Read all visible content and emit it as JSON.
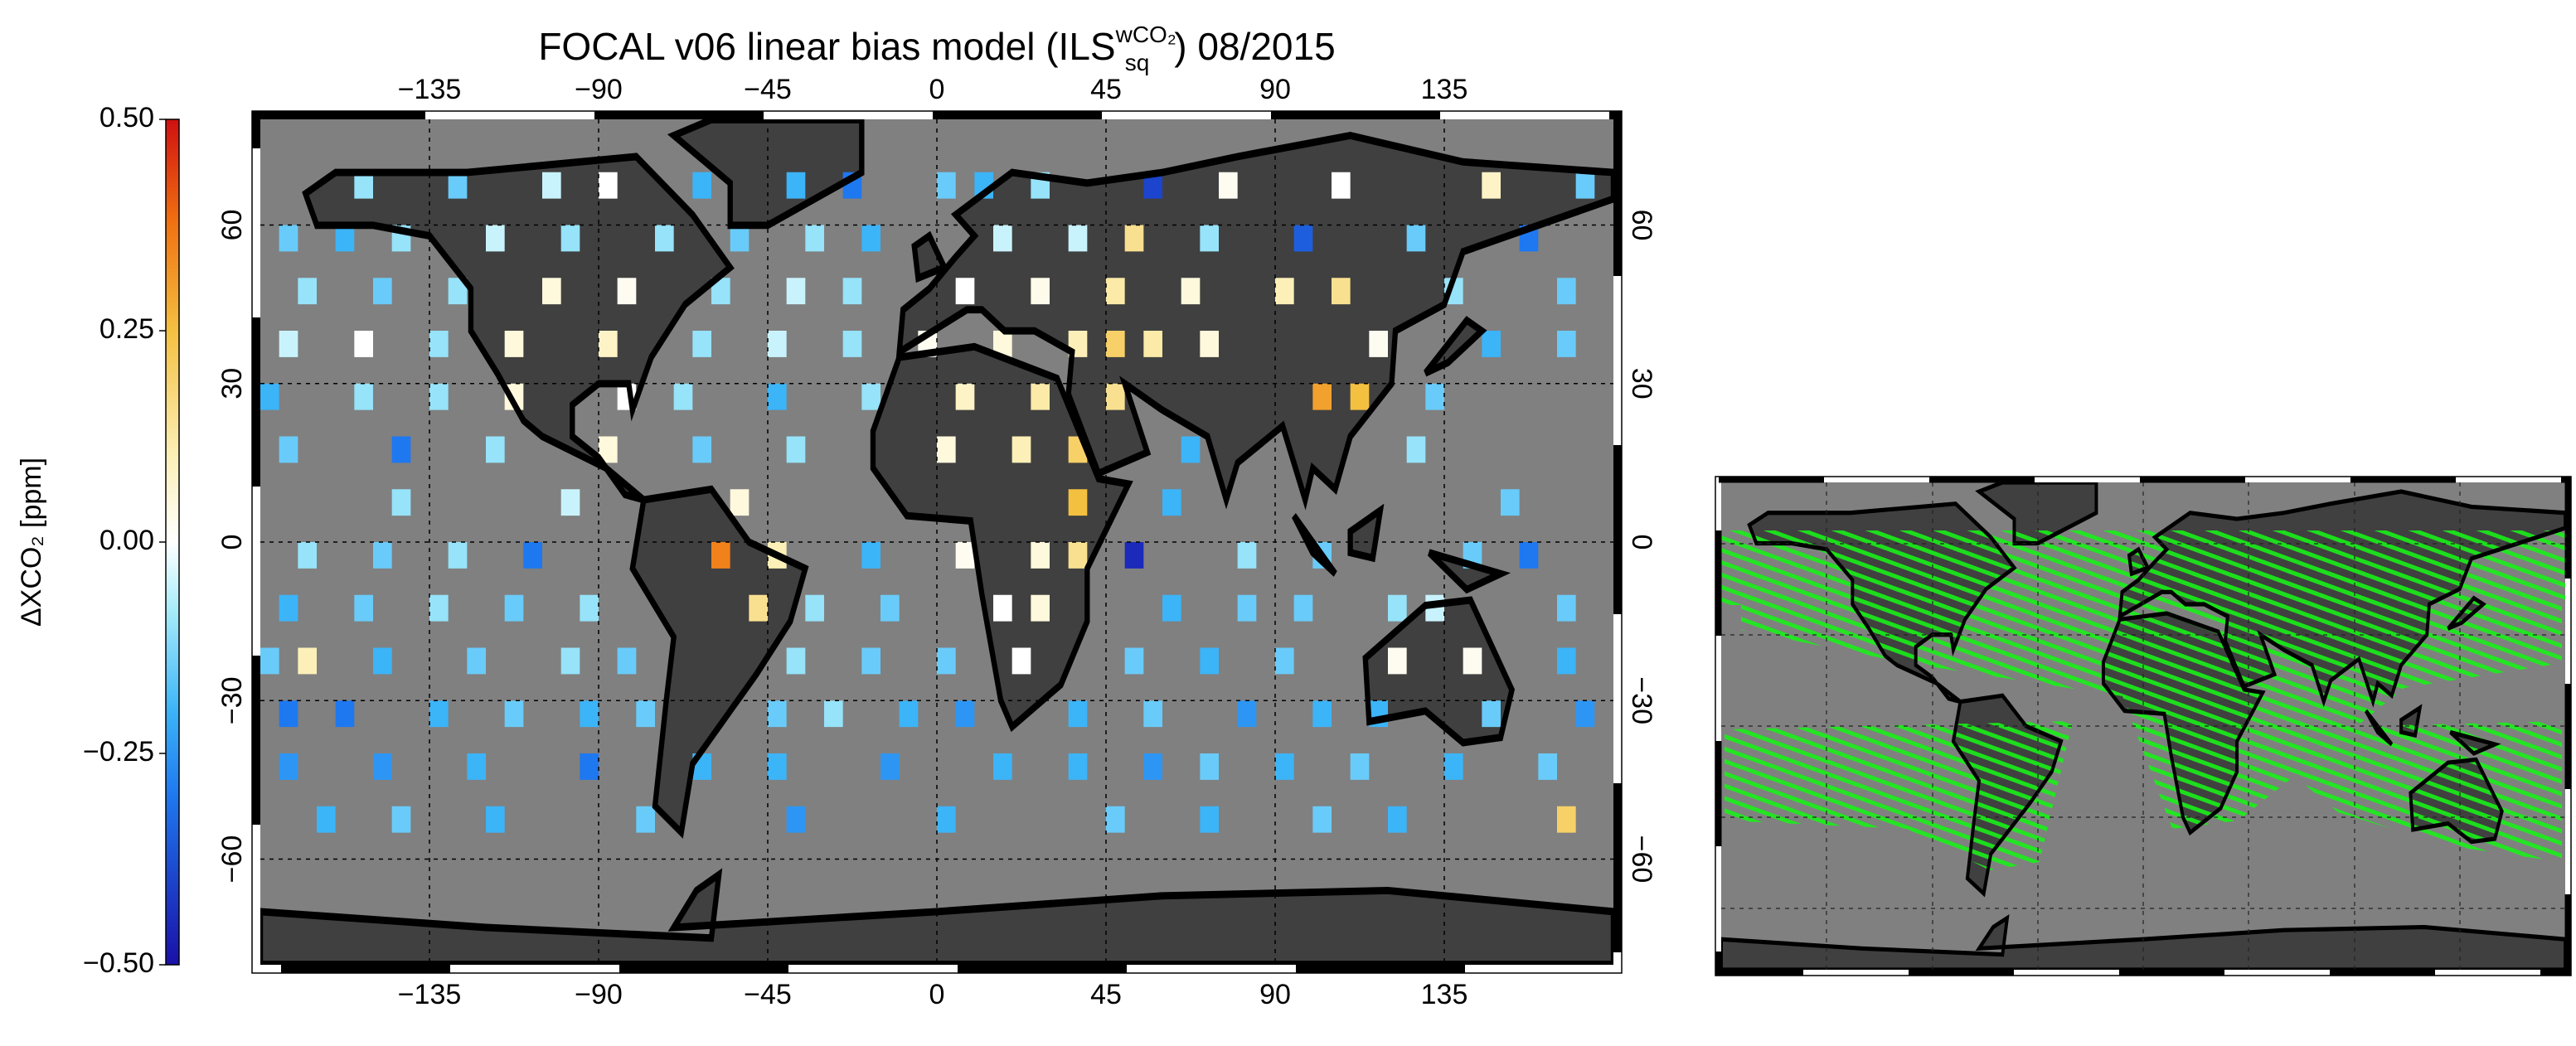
{
  "chart_data": {
    "type": "gridmap",
    "title": {
      "prefix": "FOCAL v06 linear bias model (ILS",
      "superscript": "wCO₂",
      "subscript": "sq",
      "suffix": ") 08/2015"
    },
    "colorbar_label": "ΔXCO₂ [ppm]",
    "clim": [
      -0.5,
      0.5
    ],
    "cticks": [
      {
        "value": 0.5,
        "label": "0.50"
      },
      {
        "value": 0.25,
        "label": "0.25"
      },
      {
        "value": 0,
        "label": "0.00"
      },
      {
        "value": -0.25,
        "label": "−0.25"
      },
      {
        "value": -0.5,
        "label": "−0.50"
      }
    ],
    "colormap": [
      {
        "value": -0.5,
        "color": "#1a10a8"
      },
      {
        "value": -0.3,
        "color": "#1e78f0"
      },
      {
        "value": -0.2,
        "color": "#3cb4f8"
      },
      {
        "value": -0.08,
        "color": "#a8ecfa"
      },
      {
        "value": 0,
        "color": "#ffffff"
      },
      {
        "value": 0.1,
        "color": "#fcf0b8"
      },
      {
        "value": 0.25,
        "color": "#f4c040"
      },
      {
        "value": 0.38,
        "color": "#f07010"
      },
      {
        "value": 0.5,
        "color": "#d01010"
      }
    ],
    "xlim": [
      -180,
      180
    ],
    "ylim": [
      -80,
      80
    ],
    "xticks": [
      {
        "value": -135,
        "label": "−135"
      },
      {
        "value": -90,
        "label": "−90"
      },
      {
        "value": -45,
        "label": "−45"
      },
      0,
      45,
      90,
      135
    ],
    "yticks": [
      {
        "value": -60,
        "label": "−60"
      },
      {
        "value": -30,
        "label": "−30"
      },
      0,
      30,
      60
    ],
    "grid": true,
    "cell_size": 5,
    "cells": [
      [
        -152.5,
        67.5,
        -0.1
      ],
      [
        -127.5,
        67.5,
        -0.15
      ],
      [
        -102.5,
        67.5,
        -0.05
      ],
      [
        -87.5,
        67.5,
        0
      ],
      [
        -62.5,
        67.5,
        -0.2
      ],
      [
        -37.5,
        67.5,
        -0.2
      ],
      [
        -22.5,
        67.5,
        -0.3
      ],
      [
        2.5,
        67.5,
        -0.15
      ],
      [
        12.5,
        67.5,
        -0.2
      ],
      [
        27.5,
        67.5,
        -0.1
      ],
      [
        57.5,
        67.5,
        -0.4
      ],
      [
        77.5,
        67.5,
        0.02
      ],
      [
        107.5,
        67.5,
        0
      ],
      [
        147.5,
        67.5,
        0.08
      ],
      [
        172.5,
        67.5,
        -0.15
      ],
      [
        -172.5,
        57.5,
        -0.15
      ],
      [
        -157.5,
        57.5,
        -0.2
      ],
      [
        -142.5,
        57.5,
        -0.1
      ],
      [
        -117.5,
        57.5,
        -0.05
      ],
      [
        -97.5,
        57.5,
        -0.1
      ],
      [
        -72.5,
        57.5,
        -0.1
      ],
      [
        -52.5,
        57.5,
        -0.15
      ],
      [
        -32.5,
        57.5,
        -0.1
      ],
      [
        -17.5,
        57.5,
        -0.2
      ],
      [
        17.5,
        57.5,
        -0.05
      ],
      [
        37.5,
        57.5,
        -0.05
      ],
      [
        52.5,
        57.5,
        0.15
      ],
      [
        72.5,
        57.5,
        -0.1
      ],
      [
        97.5,
        57.5,
        -0.35
      ],
      [
        127.5,
        57.5,
        -0.15
      ],
      [
        157.5,
        57.5,
        -0.3
      ],
      [
        -167.5,
        47.5,
        -0.1
      ],
      [
        -147.5,
        47.5,
        -0.15
      ],
      [
        -127.5,
        47.5,
        -0.1
      ],
      [
        -102.5,
        47.5,
        0.05
      ],
      [
        -82.5,
        47.5,
        0.02
      ],
      [
        -57.5,
        47.5,
        -0.1
      ],
      [
        -37.5,
        47.5,
        -0.05
      ],
      [
        -22.5,
        47.5,
        -0.1
      ],
      [
        7.5,
        47.5,
        0
      ],
      [
        27.5,
        47.5,
        0.03
      ],
      [
        47.5,
        47.5,
        0.12
      ],
      [
        67.5,
        47.5,
        0.05
      ],
      [
        92.5,
        47.5,
        0.1
      ],
      [
        107.5,
        47.5,
        0.15
      ],
      [
        137.5,
        47.5,
        -0.1
      ],
      [
        167.5,
        47.5,
        -0.15
      ],
      [
        -172.5,
        37.5,
        -0.05
      ],
      [
        -152.5,
        37.5,
        0
      ],
      [
        -132.5,
        37.5,
        -0.1
      ],
      [
        -112.5,
        37.5,
        0.05
      ],
      [
        -87.5,
        37.5,
        0.08
      ],
      [
        -62.5,
        37.5,
        -0.1
      ],
      [
        -42.5,
        37.5,
        -0.05
      ],
      [
        -22.5,
        37.5,
        -0.1
      ],
      [
        -2.5,
        37.5,
        0.02
      ],
      [
        17.5,
        37.5,
        0.05
      ],
      [
        37.5,
        37.5,
        0.1
      ],
      [
        47.5,
        37.5,
        0.2
      ],
      [
        57.5,
        37.5,
        0.12
      ],
      [
        72.5,
        37.5,
        0.05
      ],
      [
        117.5,
        37.5,
        0.02
      ],
      [
        147.5,
        37.5,
        -0.2
      ],
      [
        167.5,
        37.5,
        -0.15
      ],
      [
        -177.5,
        27.5,
        -0.2
      ],
      [
        -152.5,
        27.5,
        -0.1
      ],
      [
        -132.5,
        27.5,
        -0.1
      ],
      [
        -112.5,
        27.5,
        0.05
      ],
      [
        -82.5,
        27.5,
        0
      ],
      [
        -67.5,
        27.5,
        -0.1
      ],
      [
        -42.5,
        27.5,
        -0.2
      ],
      [
        -17.5,
        27.5,
        -0.1
      ],
      [
        7.5,
        27.5,
        0.08
      ],
      [
        27.5,
        27.5,
        0.12
      ],
      [
        47.5,
        27.5,
        0.15
      ],
      [
        102.5,
        27.5,
        0.3
      ],
      [
        112.5,
        27.5,
        0.25
      ],
      [
        132.5,
        27.5,
        -0.15
      ],
      [
        -172.5,
        17.5,
        -0.15
      ],
      [
        -142.5,
        17.5,
        -0.3
      ],
      [
        -117.5,
        17.5,
        -0.1
      ],
      [
        -87.5,
        17.5,
        0.05
      ],
      [
        -62.5,
        17.5,
        -0.15
      ],
      [
        -37.5,
        17.5,
        -0.1
      ],
      [
        2.5,
        17.5,
        0.05
      ],
      [
        22.5,
        17.5,
        0.1
      ],
      [
        37.5,
        17.5,
        0.2
      ],
      [
        67.5,
        17.5,
        -0.2
      ],
      [
        127.5,
        17.5,
        -0.1
      ],
      [
        -142.5,
        7.5,
        -0.1
      ],
      [
        -97.5,
        7.5,
        -0.05
      ],
      [
        -52.5,
        7.5,
        0.05
      ],
      [
        37.5,
        7.5,
        0.25
      ],
      [
        62.5,
        7.5,
        -0.2
      ],
      [
        152.5,
        7.5,
        -0.15
      ],
      [
        -167.5,
        -2.5,
        -0.1
      ],
      [
        -147.5,
        -2.5,
        -0.15
      ],
      [
        -127.5,
        -2.5,
        -0.1
      ],
      [
        -107.5,
        -2.5,
        -0.3
      ],
      [
        -57.5,
        -2.5,
        0.35
      ],
      [
        -42.5,
        -2.5,
        0.1
      ],
      [
        -17.5,
        -2.5,
        -0.2
      ],
      [
        7.5,
        -2.5,
        0.02
      ],
      [
        27.5,
        -2.5,
        0.05
      ],
      [
        37.5,
        -2.5,
        0.15
      ],
      [
        52.5,
        -2.5,
        -0.45
      ],
      [
        82.5,
        -2.5,
        -0.1
      ],
      [
        102.5,
        -2.5,
        -0.15
      ],
      [
        142.5,
        -2.5,
        -0.15
      ],
      [
        157.5,
        -2.5,
        -0.3
      ],
      [
        -172.5,
        -12.5,
        -0.2
      ],
      [
        -152.5,
        -12.5,
        -0.15
      ],
      [
        -132.5,
        -12.5,
        -0.1
      ],
      [
        -112.5,
        -12.5,
        -0.15
      ],
      [
        -92.5,
        -12.5,
        -0.1
      ],
      [
        -47.5,
        -12.5,
        0.15
      ],
      [
        -32.5,
        -12.5,
        -0.1
      ],
      [
        -12.5,
        -12.5,
        -0.15
      ],
      [
        17.5,
        -12.5,
        0
      ],
      [
        27.5,
        -12.5,
        0.05
      ],
      [
        62.5,
        -12.5,
        -0.2
      ],
      [
        82.5,
        -12.5,
        -0.15
      ],
      [
        97.5,
        -12.5,
        -0.15
      ],
      [
        122.5,
        -12.5,
        -0.1
      ],
      [
        132.5,
        -12.5,
        -0.05
      ],
      [
        167.5,
        -12.5,
        -0.15
      ],
      [
        -177.5,
        -22.5,
        -0.15
      ],
      [
        -167.5,
        -22.5,
        0.1
      ],
      [
        -147.5,
        -22.5,
        -0.2
      ],
      [
        -122.5,
        -22.5,
        -0.15
      ],
      [
        -97.5,
        -22.5,
        -0.1
      ],
      [
        -82.5,
        -22.5,
        -0.15
      ],
      [
        -37.5,
        -22.5,
        -0.1
      ],
      [
        -17.5,
        -22.5,
        -0.15
      ],
      [
        2.5,
        -22.5,
        -0.15
      ],
      [
        22.5,
        -22.5,
        0
      ],
      [
        52.5,
        -22.5,
        -0.15
      ],
      [
        72.5,
        -22.5,
        -0.2
      ],
      [
        92.5,
        -22.5,
        -0.15
      ],
      [
        122.5,
        -22.5,
        0.02
      ],
      [
        142.5,
        -22.5,
        0.02
      ],
      [
        167.5,
        -22.5,
        -0.2
      ],
      [
        -172.5,
        -32.5,
        -0.3
      ],
      [
        -157.5,
        -32.5,
        -0.3
      ],
      [
        -132.5,
        -32.5,
        -0.2
      ],
      [
        -112.5,
        -32.5,
        -0.15
      ],
      [
        -92.5,
        -32.5,
        -0.2
      ],
      [
        -77.5,
        -32.5,
        -0.15
      ],
      [
        -42.5,
        -32.5,
        -0.15
      ],
      [
        -27.5,
        -32.5,
        -0.1
      ],
      [
        -7.5,
        -32.5,
        -0.2
      ],
      [
        7.5,
        -32.5,
        -0.25
      ],
      [
        37.5,
        -32.5,
        -0.2
      ],
      [
        57.5,
        -32.5,
        -0.15
      ],
      [
        82.5,
        -32.5,
        -0.25
      ],
      [
        102.5,
        -32.5,
        -0.2
      ],
      [
        117.5,
        -32.5,
        -0.2
      ],
      [
        147.5,
        -32.5,
        -0.15
      ],
      [
        172.5,
        -32.5,
        -0.25
      ],
      [
        -172.5,
        -42.5,
        -0.25
      ],
      [
        -147.5,
        -42.5,
        -0.25
      ],
      [
        -122.5,
        -42.5,
        -0.2
      ],
      [
        -92.5,
        -42.5,
        -0.3
      ],
      [
        -62.5,
        -42.5,
        -0.2
      ],
      [
        -42.5,
        -42.5,
        -0.2
      ],
      [
        -12.5,
        -42.5,
        -0.25
      ],
      [
        17.5,
        -42.5,
        -0.2
      ],
      [
        37.5,
        -42.5,
        -0.2
      ],
      [
        57.5,
        -42.5,
        -0.25
      ],
      [
        72.5,
        -42.5,
        -0.15
      ],
      [
        92.5,
        -42.5,
        -0.2
      ],
      [
        112.5,
        -42.5,
        -0.15
      ],
      [
        137.5,
        -42.5,
        -0.2
      ],
      [
        162.5,
        -42.5,
        -0.15
      ],
      [
        -162.5,
        -52.5,
        -0.2
      ],
      [
        -142.5,
        -52.5,
        -0.15
      ],
      [
        -117.5,
        -52.5,
        -0.2
      ],
      [
        -77.5,
        -52.5,
        -0.15
      ],
      [
        -37.5,
        -52.5,
        -0.25
      ],
      [
        2.5,
        -52.5,
        -0.2
      ],
      [
        47.5,
        -52.5,
        -0.15
      ],
      [
        72.5,
        -52.5,
        -0.2
      ],
      [
        102.5,
        -52.5,
        -0.15
      ],
      [
        122.5,
        -52.5,
        -0.2
      ],
      [
        167.5,
        -52.5,
        0.2
      ]
    ]
  }
}
